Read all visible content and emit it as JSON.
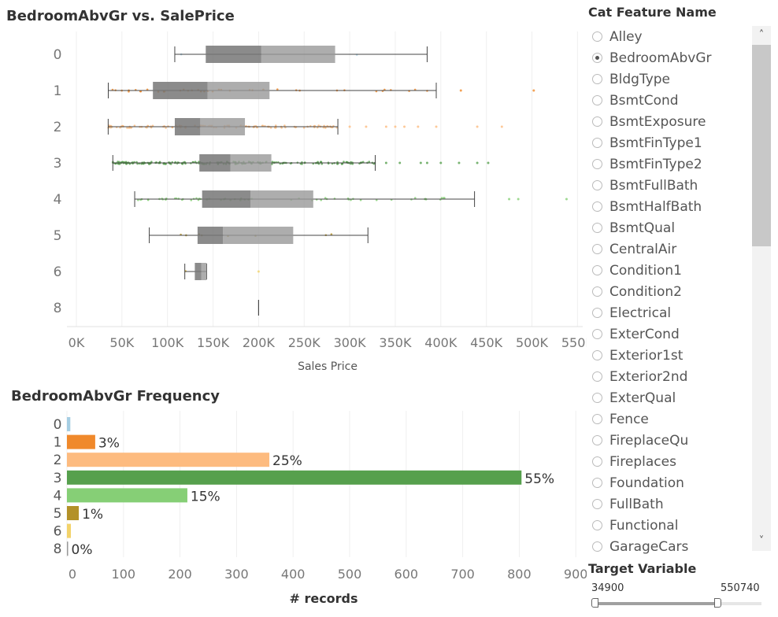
{
  "box_chart": {
    "title": "BedroomAbvGr vs. SalePrice",
    "xlabel": "Sales Price",
    "x_ticks": [
      "0K",
      "50K",
      "100K",
      "150K",
      "200K",
      "250K",
      "300K",
      "350K",
      "400K",
      "450K",
      "500K",
      "550K"
    ],
    "x_tick_values": [
      0,
      50000,
      100000,
      150000,
      200000,
      250000,
      300000,
      350000,
      400000,
      450000,
      500000,
      550000
    ]
  },
  "freq_chart": {
    "title": "BedroomAbvGr Frequency",
    "xlabel": "# records",
    "x_ticks": [
      "0",
      "100",
      "200",
      "300",
      "400",
      "500",
      "600",
      "700",
      "800",
      "900"
    ],
    "x_tick_values": [
      0,
      100,
      200,
      300,
      400,
      500,
      600,
      700,
      800,
      900
    ]
  },
  "chart_data": [
    {
      "type": "box",
      "title": "BedroomAbvGr vs. SalePrice",
      "xlabel": "Sales Price",
      "ylabel": "",
      "xlim": [
        -10000,
        565000
      ],
      "categories": [
        "0",
        "1",
        "2",
        "3",
        "4",
        "5",
        "6",
        "8"
      ],
      "colors": [
        "#a6cee3",
        "#f0892b",
        "#fdbb7f",
        "#56a04d",
        "#86cf76",
        "#b39128",
        "#f3d36a",
        "#999999"
      ],
      "boxes": [
        {
          "category": "0",
          "min": 108000,
          "q1": 142000,
          "median": 203000,
          "q3": 284000,
          "max": 385000,
          "outliers": []
        },
        {
          "category": "1",
          "min": 35000,
          "q1": 84000,
          "median": 144000,
          "q3": 212000,
          "max": 395000,
          "outliers": [
            422000,
            502000
          ]
        },
        {
          "category": "2",
          "min": 34900,
          "q1": 108000,
          "median": 136000,
          "q3": 185000,
          "max": 287000,
          "outliers": [
            300000,
            318000,
            340000,
            350000,
            360000,
            375000,
            395000,
            440000,
            467000
          ]
        },
        {
          "category": "3",
          "min": 40000,
          "q1": 135000,
          "median": 169000,
          "q3": 214000,
          "max": 328000,
          "outliers": [
            340000,
            355000,
            378000,
            385000,
            400000,
            420000,
            440000,
            452000
          ]
        },
        {
          "category": "4",
          "min": 64000,
          "q1": 138000,
          "median": 191000,
          "q3": 260000,
          "max": 437000,
          "outliers": [
            475000,
            485000,
            538000
          ]
        },
        {
          "category": "5",
          "min": 80000,
          "q1": 133000,
          "median": 161000,
          "q3": 238000,
          "max": 320000,
          "outliers": []
        },
        {
          "category": "6",
          "min": 119000,
          "q1": 130000,
          "median": 137000,
          "q3": 143000,
          "max": 143000,
          "outliers": [
            200000
          ]
        },
        {
          "category": "8",
          "min": 200000,
          "q1": 200000,
          "median": 200000,
          "q3": 200000,
          "max": 200000,
          "outliers": []
        }
      ]
    },
    {
      "type": "bar",
      "orientation": "horizontal",
      "title": "BedroomAbvGr Frequency",
      "xlabel": "# records",
      "ylabel": "",
      "xlim": [
        0,
        920
      ],
      "categories": [
        "0",
        "1",
        "2",
        "3",
        "4",
        "5",
        "6",
        "8"
      ],
      "values": [
        6,
        50,
        358,
        804,
        213,
        21,
        7,
        1
      ],
      "labels": [
        "",
        "3%",
        "25%",
        "55%",
        "15%",
        "1%",
        "",
        "0%"
      ],
      "colors": [
        "#a6cee3",
        "#f0892b",
        "#fdbb7f",
        "#56a04d",
        "#86cf76",
        "#b39128",
        "#f3d36a",
        "#999999"
      ]
    }
  ],
  "filter": {
    "title": "Cat Feature Name",
    "selected": "BedroomAbvGr",
    "items": [
      "Alley",
      "BedroomAbvGr",
      "BldgType",
      "BsmtCond",
      "BsmtExposure",
      "BsmtFinType1",
      "BsmtFinType2",
      "BsmtFullBath",
      "BsmtHalfBath",
      "BsmtQual",
      "CentralAir",
      "Condition1",
      "Condition2",
      "Electrical",
      "ExterCond",
      "Exterior1st",
      "Exterior2nd",
      "ExterQual",
      "Fence",
      "FireplaceQu",
      "Fireplaces",
      "Foundation",
      "FullBath",
      "Functional",
      "GarageCars"
    ]
  },
  "scrollbar": {
    "up_icon": "chevron-up-icon",
    "down_icon": "chevron-down-icon"
  },
  "target": {
    "title": "Target Variable",
    "min_label": "34900",
    "max_label": "550740"
  }
}
